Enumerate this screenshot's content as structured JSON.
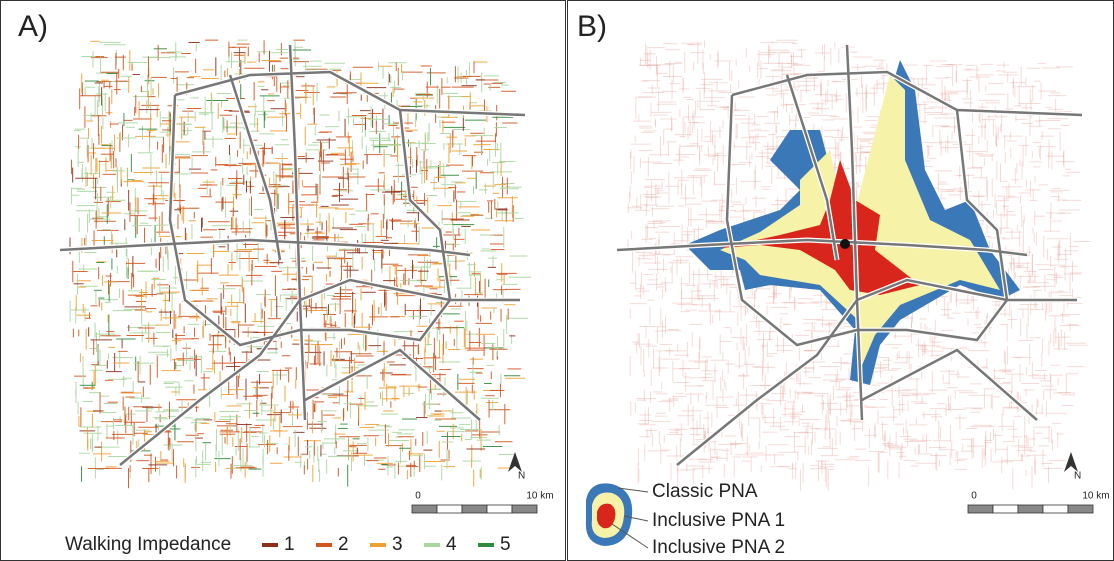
{
  "panels": [
    {
      "label": "A)",
      "north": "N",
      "scale_bar": {
        "start": "0",
        "end": "10 km"
      },
      "legend": {
        "title": "Walking Impedance",
        "items": [
          {
            "label": "1",
            "color": "#8b2f1c"
          },
          {
            "label": "2",
            "color": "#d2541f"
          },
          {
            "label": "3",
            "color": "#f0a030"
          },
          {
            "label": "4",
            "color": "#a9d6a0"
          },
          {
            "label": "5",
            "color": "#2e8b3a"
          }
        ]
      }
    },
    {
      "label": "B)",
      "north": "N",
      "scale_bar": {
        "start": "0",
        "end": "10 km"
      },
      "legend": {
        "items": [
          {
            "label": "Classic PNA",
            "color": "#3a78b8"
          },
          {
            "label": "Inclusive PNA 1",
            "color": "#f6f2a8"
          },
          {
            "label": "Inclusive PNA 2",
            "color": "#d9261c"
          }
        ]
      }
    }
  ]
}
